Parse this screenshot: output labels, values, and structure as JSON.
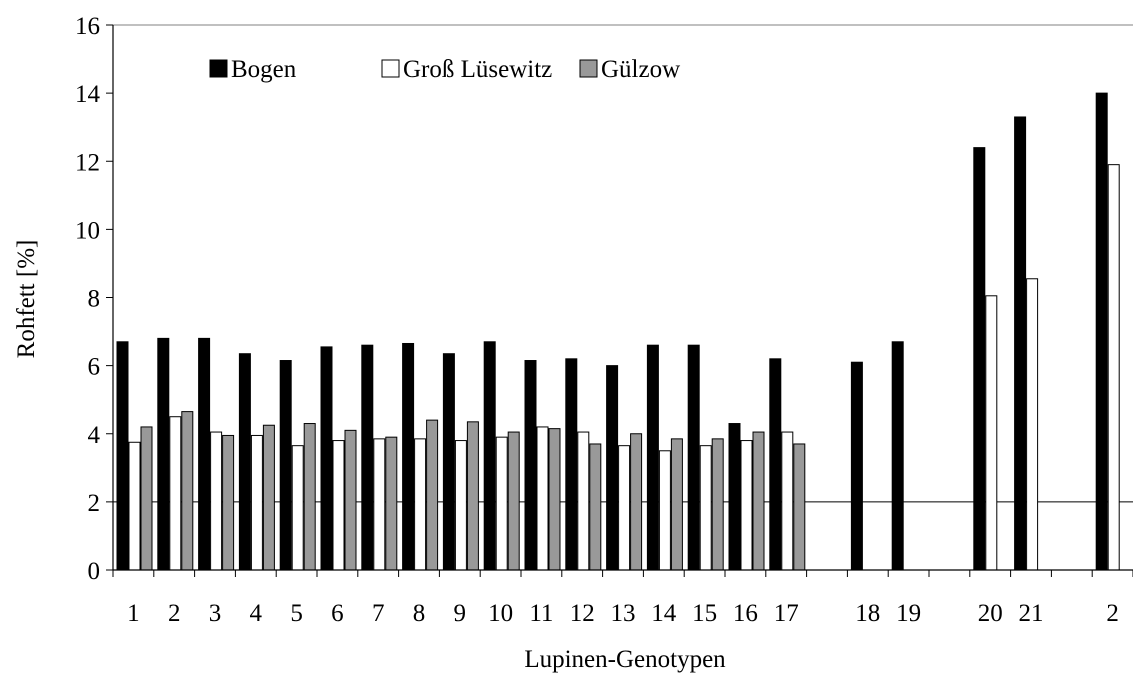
{
  "chart_data": {
    "type": "bar",
    "title": "",
    "xlabel": "Lupinen-Genotypen",
    "ylabel": "Rohfett [%]",
    "ylim": [
      0,
      16
    ],
    "yticks": [
      0,
      2,
      4,
      6,
      8,
      10,
      12,
      14,
      16
    ],
    "grid": "horizontal lines at 2 and 16",
    "legend_position": "top-left, inside plot",
    "categories": [
      "1",
      "2",
      "3",
      "4",
      "5",
      "6",
      "7",
      "8",
      "9",
      "10",
      "11",
      "12",
      "13",
      "14",
      "15",
      "16",
      "17",
      "",
      "18",
      "19",
      "",
      "20",
      "21",
      "",
      "2"
    ],
    "series": [
      {
        "name": "Bogen",
        "color": "#000000",
        "values": [
          6.7,
          6.8,
          6.8,
          6.35,
          6.15,
          6.55,
          6.6,
          6.65,
          6.35,
          6.7,
          6.15,
          6.2,
          6.0,
          6.6,
          6.6,
          4.3,
          6.2,
          null,
          6.1,
          6.7,
          null,
          12.4,
          13.3,
          null,
          14.0
        ]
      },
      {
        "name": "Groß Lüsewitz",
        "color": "#ffffff",
        "values": [
          3.75,
          4.5,
          4.05,
          3.95,
          3.65,
          3.8,
          3.85,
          3.85,
          3.8,
          3.9,
          4.2,
          4.05,
          3.65,
          3.5,
          3.65,
          3.8,
          4.05,
          null,
          null,
          null,
          null,
          8.05,
          8.55,
          null,
          11.9
        ]
      },
      {
        "name": "Gülzow",
        "color": "#999999",
        "values": [
          4.2,
          4.65,
          3.95,
          4.25,
          4.3,
          4.1,
          3.9,
          4.4,
          4.35,
          4.05,
          4.15,
          3.7,
          4.0,
          3.85,
          3.85,
          4.05,
          3.7,
          null,
          null,
          null,
          null,
          null,
          null,
          null,
          null
        ]
      }
    ]
  }
}
